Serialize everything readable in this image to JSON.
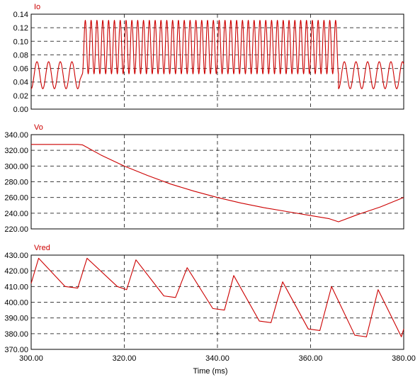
{
  "trace_color": "#cc0000",
  "chart_data": [
    {
      "type": "line",
      "title": "Io",
      "xlim": [
        300,
        380
      ],
      "ylim": [
        0,
        0.14
      ],
      "y_ticks": [
        "0.00",
        "0.02",
        "0.04",
        "0.06",
        "0.08",
        "0.10",
        "0.12",
        "0.14"
      ],
      "grid": true,
      "segments": [
        {
          "x_range": [
            300,
            310.5
          ],
          "waveform": "sine",
          "min": 0.03,
          "max": 0.07,
          "period_ms": 2.5
        },
        {
          "x_range": [
            310.5,
            311
          ],
          "waveform": "transition"
        },
        {
          "x_range": [
            311,
            366
          ],
          "waveform": "sine",
          "min": 0.052,
          "max": 0.131,
          "period_ms": 1.25
        },
        {
          "x_range": [
            366,
            380
          ],
          "waveform": "sine",
          "min": 0.03,
          "max": 0.07,
          "period_ms": 2.5
        }
      ]
    },
    {
      "type": "line",
      "title": "Vo",
      "xlim": [
        300,
        380
      ],
      "ylim": [
        220,
        340
      ],
      "y_ticks": [
        "220.00",
        "240.00",
        "260.00",
        "280.00",
        "300.00",
        "320.00",
        "340.00"
      ],
      "grid": true,
      "x": [
        300,
        305,
        310,
        311,
        315,
        320,
        325,
        330,
        335,
        340,
        345,
        350,
        355,
        360,
        364,
        366,
        370,
        375,
        380
      ],
      "y": [
        327.5,
        327.5,
        327.5,
        327,
        314,
        300,
        288,
        277,
        268,
        260,
        253,
        247,
        242,
        237,
        233,
        229,
        238,
        248,
        260
      ]
    },
    {
      "type": "line",
      "title": "Vred",
      "xlim": [
        300,
        380
      ],
      "ylim": [
        370,
        430
      ],
      "y_ticks": [
        "370.00",
        "380.00",
        "390.00",
        "400.00",
        "410.00",
        "420.00",
        "430.00"
      ],
      "grid": true,
      "x_ticks": [
        "300.00",
        "320.00",
        "340.00",
        "360.00",
        "380.00"
      ],
      "xlabel": "Time (ms)",
      "x": [
        300,
        301.6,
        307.3,
        310,
        312,
        318.5,
        320.5,
        322.5,
        328.5,
        331,
        333.5,
        339,
        341.5,
        343.5,
        349,
        351.5,
        354,
        359.5,
        362,
        364.5,
        369.5,
        372,
        374.5,
        379.5,
        380
      ],
      "y": [
        412,
        428,
        410,
        409,
        428,
        410,
        408,
        427,
        404,
        403,
        422,
        396,
        395,
        417,
        388,
        387,
        413,
        383,
        382,
        410,
        379,
        378,
        408,
        378,
        383
      ]
    }
  ]
}
